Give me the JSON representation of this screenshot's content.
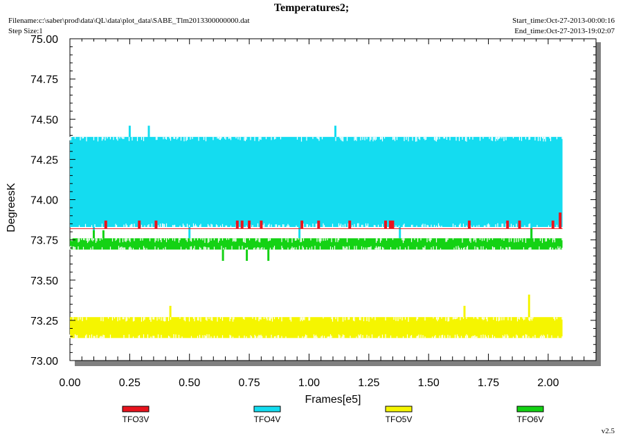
{
  "header": {
    "filename": "Filename:c:\\saber\\prod\\data\\QL\\data\\plot_data\\SABE_Tlm2013300000000.dat",
    "step_size": "Step Size:1",
    "start_time": "Start_time:Oct-27-2013-00:00:16",
    "end_time": "End_time:Oct-27-2013-19:02:07"
  },
  "version": "v2.5",
  "chart_data": {
    "type": "line",
    "title": "Temperatures2;",
    "xlabel": "Frames[e5]",
    "ylabel": "DegreesK",
    "xlim": [
      0.0,
      2.2
    ],
    "ylim": [
      73.0,
      75.0
    ],
    "x_ticks": [
      "0.00",
      "0.25",
      "0.50",
      "0.75",
      "1.00",
      "1.25",
      "1.50",
      "1.75",
      "2.00"
    ],
    "y_ticks": [
      "73.00",
      "73.25",
      "73.50",
      "73.75",
      "74.00",
      "74.25",
      "74.50",
      "74.75",
      "75.00"
    ],
    "grid": false,
    "legend_position": "bottom",
    "series": [
      {
        "name": "TFO3V",
        "color": "#e8141e",
        "x_range": [
          0.0,
          2.06
        ],
        "typical_range": [
          73.82,
          73.82
        ],
        "spikes": [
          {
            "x": 0.15,
            "y": 73.87
          },
          {
            "x": 0.29,
            "y": 73.87
          },
          {
            "x": 0.36,
            "y": 73.87
          },
          {
            "x": 0.7,
            "y": 73.87
          },
          {
            "x": 0.72,
            "y": 73.87
          },
          {
            "x": 0.75,
            "y": 73.87
          },
          {
            "x": 0.8,
            "y": 73.87
          },
          {
            "x": 0.97,
            "y": 73.87
          },
          {
            "x": 1.04,
            "y": 73.87
          },
          {
            "x": 1.17,
            "y": 73.87
          },
          {
            "x": 1.32,
            "y": 73.87
          },
          {
            "x": 1.34,
            "y": 73.87
          },
          {
            "x": 1.35,
            "y": 73.87
          },
          {
            "x": 1.67,
            "y": 73.87
          },
          {
            "x": 1.83,
            "y": 73.87
          },
          {
            "x": 1.88,
            "y": 73.87
          },
          {
            "x": 2.02,
            "y": 73.87
          },
          {
            "x": 2.05,
            "y": 73.92
          }
        ]
      },
      {
        "name": "TFO4V",
        "color": "#14dcf0",
        "x_range": [
          0.0,
          2.06
        ],
        "typical_range": [
          73.83,
          74.39
        ],
        "spikes": [
          {
            "x": 0.25,
            "y": 74.46
          },
          {
            "x": 0.33,
            "y": 74.46
          },
          {
            "x": 1.11,
            "y": 74.46
          },
          {
            "x": 0.1,
            "y": 73.76
          },
          {
            "x": 0.5,
            "y": 73.76
          },
          {
            "x": 0.96,
            "y": 73.76
          },
          {
            "x": 1.38,
            "y": 73.76
          },
          {
            "x": 1.93,
            "y": 73.76
          }
        ]
      },
      {
        "name": "TFO5V",
        "color": "#f5f500",
        "x_range": [
          0.0,
          2.06
        ],
        "typical_range": [
          73.14,
          73.27
        ],
        "spikes": [
          {
            "x": 0.42,
            "y": 73.34
          },
          {
            "x": 1.65,
            "y": 73.34
          },
          {
            "x": 1.92,
            "y": 73.41
          }
        ]
      },
      {
        "name": "TFO6V",
        "color": "#14d214",
        "x_range": [
          0.0,
          2.06
        ],
        "typical_range": [
          73.69,
          73.76
        ],
        "spikes": [
          {
            "x": 0.64,
            "y": 73.62
          },
          {
            "x": 0.74,
            "y": 73.62
          },
          {
            "x": 0.83,
            "y": 73.62
          },
          {
            "x": 0.1,
            "y": 73.81
          },
          {
            "x": 0.14,
            "y": 73.81
          },
          {
            "x": 1.93,
            "y": 73.82
          }
        ]
      }
    ]
  }
}
